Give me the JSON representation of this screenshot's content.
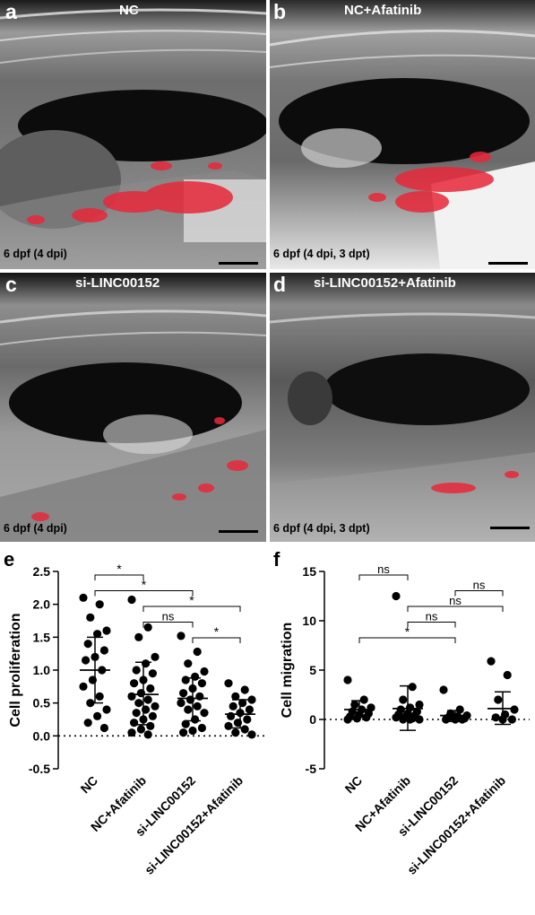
{
  "panels": [
    {
      "letter": "a",
      "title": "NC",
      "caption": "6 dpf (4 dpi)"
    },
    {
      "letter": "b",
      "title": "NC+Afatinib",
      "caption": "6 dpf (4 dpi, 3 dpt)"
    },
    {
      "letter": "c",
      "title": "si-LINC00152",
      "caption": "6 dpf (4 dpi)"
    },
    {
      "letter": "d",
      "title": "si-LINC00152+Afatinib",
      "caption": "6 dpf (4 dpi, 3 dpt)"
    }
  ],
  "colors": {
    "fluorescence": "#e8283a",
    "axis": "#000000"
  },
  "chart_data": [
    {
      "letter": "e",
      "type": "scatter",
      "ylabel": "Cell proliferation",
      "ylim": [
        -0.5,
        2.5
      ],
      "yticks": [
        -0.5,
        0.0,
        0.5,
        1.0,
        1.5,
        2.0,
        2.5
      ],
      "categories": [
        "NC",
        "NC+Afatinib",
        "si-LINC00152",
        "si-LINC00152+Afatinib"
      ],
      "zero_line": true,
      "series": [
        {
          "values": [
            2.1,
            2.0,
            1.8,
            1.6,
            1.55,
            1.4,
            1.3,
            1.2,
            1.15,
            1.0,
            0.85,
            0.75,
            0.6,
            0.5,
            0.4,
            0.3,
            0.2,
            0.12
          ],
          "mean": 1.0,
          "sd_low": 0.5,
          "sd_high": 1.5
        },
        {
          "values": [
            2.07,
            1.65,
            1.5,
            1.2,
            1.1,
            1.0,
            0.95,
            0.85,
            0.8,
            0.72,
            0.65,
            0.6,
            0.55,
            0.5,
            0.45,
            0.4,
            0.35,
            0.3,
            0.25,
            0.2,
            0.15,
            0.1,
            0.05,
            0.02
          ],
          "mean": 0.63,
          "sd_low": 0.17,
          "sd_high": 1.12
        },
        {
          "values": [
            1.52,
            1.28,
            1.1,
            0.98,
            0.9,
            0.85,
            0.8,
            0.72,
            0.65,
            0.6,
            0.55,
            0.5,
            0.45,
            0.4,
            0.35,
            0.25,
            0.18,
            0.12,
            0.08,
            0.05
          ],
          "mean": 0.57,
          "sd_low": 0.23,
          "sd_high": 0.88
        },
        {
          "values": [
            0.8,
            0.7,
            0.6,
            0.55,
            0.5,
            0.45,
            0.4,
            0.35,
            0.3,
            0.25,
            0.2,
            0.15,
            0.1,
            0.05,
            0.02
          ],
          "mean": 0.33,
          "sd_low": 0.12,
          "sd_high": 0.55
        }
      ],
      "comparisons": [
        {
          "from": 0,
          "to": 1,
          "label": "*"
        },
        {
          "from": 0,
          "to": 2,
          "label": "*"
        },
        {
          "from": 1,
          "to": 3,
          "label": "*"
        },
        {
          "from": 1,
          "to": 2,
          "label": "ns"
        },
        {
          "from": 2,
          "to": 3,
          "label": "*"
        }
      ]
    },
    {
      "letter": "f",
      "type": "scatter",
      "ylabel": "Cell migration",
      "ylim": [
        -5,
        15
      ],
      "yticks": [
        -5,
        0,
        5,
        10,
        15
      ],
      "categories": [
        "NC",
        "NC+Afatinib",
        "si-LINC00152",
        "si-LINC00152+Afatinib"
      ],
      "zero_line": true,
      "series": [
        {
          "values": [
            4.0,
            2.0,
            1.5,
            1.2,
            1.0,
            0.8,
            0.6,
            0.5,
            0.3,
            0.2,
            0.1,
            0.0
          ],
          "mean": 1.0,
          "sd_low": 0.2,
          "sd_high": 1.9
        },
        {
          "values": [
            12.5,
            3.3,
            2.0,
            1.5,
            1.2,
            1.0,
            0.8,
            0.6,
            0.5,
            0.4,
            0.3,
            0.2,
            0.1,
            0.0,
            0.0,
            0.0
          ],
          "mean": 1.1,
          "sd_low": -1.1,
          "sd_high": 3.4
        },
        {
          "values": [
            3.0,
            1.0,
            0.6,
            0.4,
            0.3,
            0.2,
            0.1,
            0.0,
            0.0,
            0.0
          ],
          "mean": 0.4,
          "sd_low": -0.2,
          "sd_high": 0.9
        },
        {
          "values": [
            5.9,
            4.5,
            2.0,
            1.0,
            0.5,
            0.2,
            0.0,
            0.0
          ],
          "mean": 1.1,
          "sd_low": -0.5,
          "sd_high": 2.8
        }
      ],
      "comparisons": [
        {
          "from": 0,
          "to": 1,
          "label": "ns"
        },
        {
          "from": 2,
          "to": 3,
          "label": "ns"
        },
        {
          "from": 1,
          "to": 3,
          "label": "ns"
        },
        {
          "from": 1,
          "to": 2,
          "label": "ns"
        },
        {
          "from": 0,
          "to": 2,
          "label": "*"
        }
      ]
    }
  ]
}
